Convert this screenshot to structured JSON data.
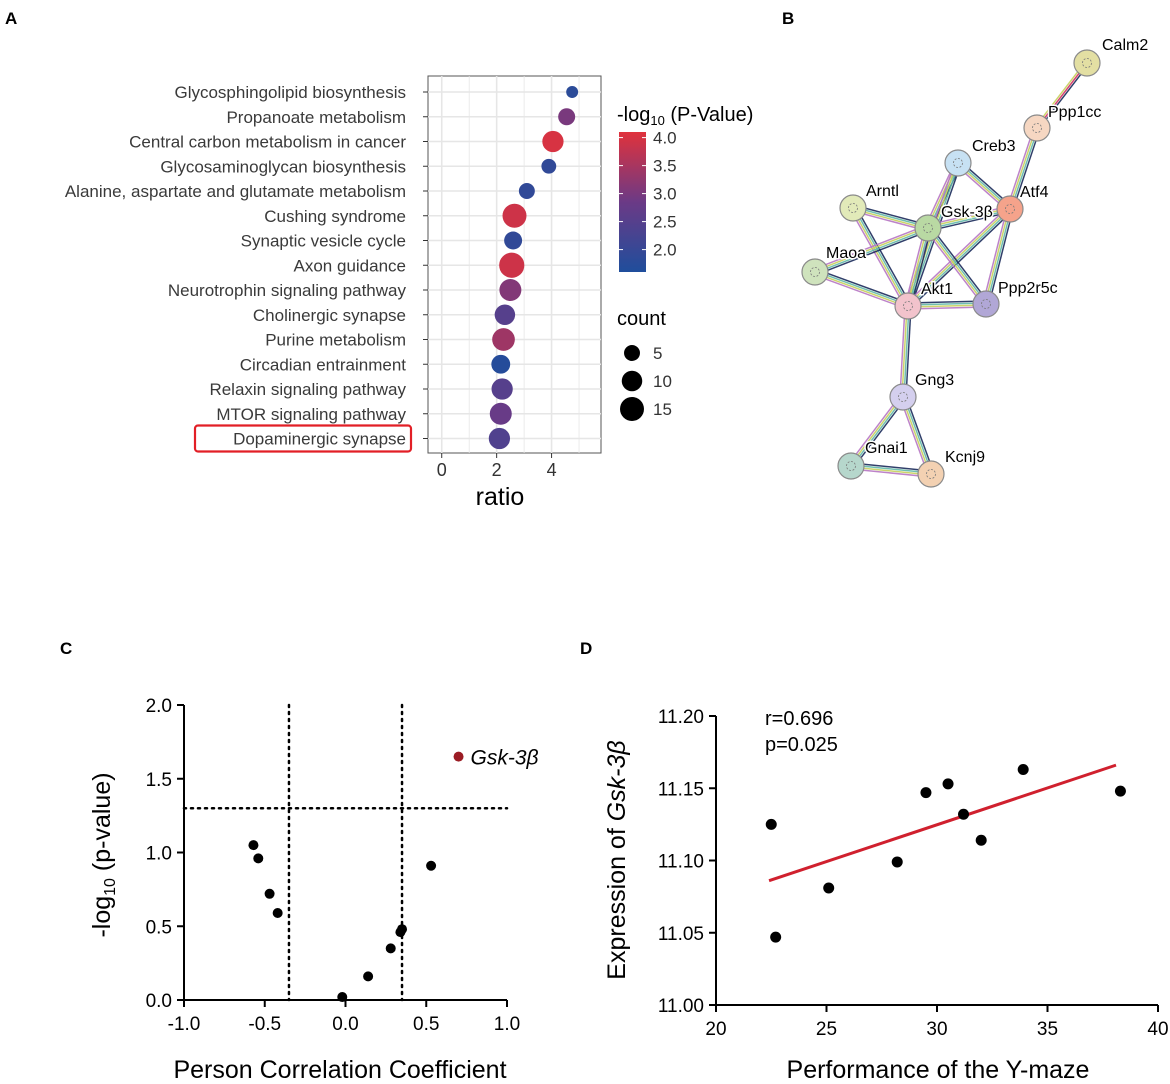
{
  "panels": {
    "A": {
      "label": "A"
    },
    "B": {
      "label": "B"
    },
    "C": {
      "label": "C"
    },
    "D": {
      "label": "D"
    }
  },
  "chart_data": [
    {
      "id": "A",
      "type": "scatter",
      "subtype": "bubble",
      "xlabel": "ratio",
      "xlim": [
        -0.5,
        5.8
      ],
      "xticks": [
        0,
        2,
        4
      ],
      "grid": true,
      "categories": [
        "Glycosphingolipid biosynthesis",
        "Propanoate metabolism",
        "Central carbon metabolism in cancer",
        "Glycosaminoglycan biosynthesis",
        "Alanine, aspartate and glutamate metabolism",
        "Cushing syndrome",
        "Synaptic vesicle cycle",
        "Axon guidance",
        "Neurotrophin signaling pathway",
        "Cholinergic synapse",
        "Purine metabolism",
        "Circadian entrainment",
        "Relaxin signaling pathway",
        "MTOR signaling pathway",
        "Dopaminergic synapse"
      ],
      "ratio": [
        4.75,
        4.55,
        4.05,
        3.9,
        3.1,
        2.65,
        2.6,
        2.55,
        2.5,
        2.3,
        2.25,
        2.15,
        2.2,
        2.15,
        2.1
      ],
      "count": [
        2,
        6,
        11,
        4,
        5,
        15,
        7,
        17,
        12,
        10,
        13,
        8,
        11,
        12,
        11
      ],
      "neg_log10_p": [
        1.8,
        3.0,
        4.0,
        1.9,
        1.9,
        3.9,
        1.9,
        3.9,
        3.1,
        2.5,
        3.4,
        1.7,
        2.5,
        2.8,
        2.4
      ],
      "highlighted": "Dopaminergic synapse",
      "color_legend": {
        "title_prefix": "-log",
        "title_sub": "10",
        "title_suffix": " (P-Value)",
        "ticks": [
          "4.0",
          "3.5",
          "3.0",
          "2.5",
          "2.0"
        ],
        "range": [
          1.6,
          4.1
        ],
        "low_color": "#1f4e9c",
        "mid_color": "#6b3a86",
        "high_color": "#e0323c"
      },
      "size_legend": {
        "title": "count",
        "values": [
          5,
          10,
          15
        ]
      }
    },
    {
      "id": "B",
      "type": "network",
      "nodes": [
        {
          "id": "Calm2",
          "color": "#e3dfa3"
        },
        {
          "id": "Ppp1cc",
          "color": "#f6d7c2"
        },
        {
          "id": "Creb3",
          "color": "#c7e1f3"
        },
        {
          "id": "Atf4",
          "color": "#f5a38b"
        },
        {
          "id": "Arntl",
          "color": "#e2eab9"
        },
        {
          "id": "Gsk-3β",
          "color": "#b9d9a3"
        },
        {
          "id": "Maoa",
          "color": "#cfe3bd"
        },
        {
          "id": "Akt1",
          "color": "#f2c3cc"
        },
        {
          "id": "Ppp2r5c",
          "color": "#b1a7d6"
        },
        {
          "id": "Gng3",
          "color": "#d4cfee"
        },
        {
          "id": "Gnai1",
          "color": "#b6d7cc"
        },
        {
          "id": "Kcnj9",
          "color": "#f3d1b2"
        }
      ],
      "edges": [
        [
          "Calm2",
          "Ppp1cc"
        ],
        [
          "Ppp1cc",
          "Atf4"
        ],
        [
          "Creb3",
          "Atf4"
        ],
        [
          "Creb3",
          "Gsk-3β"
        ],
        [
          "Creb3",
          "Akt1"
        ],
        [
          "Atf4",
          "Gsk-3β"
        ],
        [
          "Atf4",
          "Akt1"
        ],
        [
          "Atf4",
          "Ppp2r5c"
        ],
        [
          "Arntl",
          "Gsk-3β"
        ],
        [
          "Arntl",
          "Akt1"
        ],
        [
          "Gsk-3β",
          "Maoa"
        ],
        [
          "Gsk-3β",
          "Akt1"
        ],
        [
          "Gsk-3β",
          "Ppp2r5c"
        ],
        [
          "Maoa",
          "Akt1"
        ],
        [
          "Akt1",
          "Ppp2r5c"
        ],
        [
          "Akt1",
          "Gng3"
        ],
        [
          "Gng3",
          "Gnai1"
        ],
        [
          "Gng3",
          "Kcnj9"
        ],
        [
          "Gnai1",
          "Kcnj9"
        ]
      ]
    },
    {
      "id": "C",
      "type": "scatter",
      "xlabel": "Person Correlation Coefficient",
      "ylabel_prefix": "-log",
      "ylabel_sub": "10",
      "ylabel_suffix": " (p-value)",
      "xlim": [
        -1.0,
        1.0
      ],
      "ylim": [
        0.0,
        2.0
      ],
      "xticks": [
        "-1.0",
        "-0.5",
        "0.0",
        "0.5",
        "1.0"
      ],
      "yticks": [
        "0.0",
        "0.5",
        "1.0",
        "1.5",
        "2.0"
      ],
      "thresholds": {
        "x": [
          -0.35,
          0.35
        ],
        "y": 1.3
      },
      "x": [
        -0.57,
        -0.54,
        -0.47,
        -0.42,
        -0.02,
        0.14,
        0.28,
        0.34,
        0.35,
        0.53
      ],
      "y": [
        1.05,
        0.96,
        0.72,
        0.59,
        0.02,
        0.16,
        0.35,
        0.46,
        0.48,
        0.91
      ],
      "highlight": {
        "label": "Gsk-3β",
        "x": 0.7,
        "y": 1.65,
        "color": "#9b1c24"
      }
    },
    {
      "id": "D",
      "type": "scatter",
      "xlabel": "Performance of the Y-maze",
      "ylabel_prefix": "Expression of ",
      "ylabel_gene": "Gsk-3β",
      "xlim": [
        20,
        40
      ],
      "ylim": [
        11.0,
        11.2
      ],
      "xticks": [
        "20",
        "25",
        "30",
        "35",
        "40"
      ],
      "yticks": [
        "11.00",
        "11.05",
        "11.10",
        "11.15",
        "11.20"
      ],
      "x": [
        22.5,
        22.7,
        25.1,
        28.2,
        29.5,
        30.5,
        31.2,
        32.0,
        33.9,
        38.3
      ],
      "y": [
        11.125,
        11.047,
        11.081,
        11.099,
        11.147,
        11.153,
        11.132,
        11.114,
        11.163,
        11.148
      ],
      "fit": {
        "x": [
          22.4,
          38.1
        ],
        "y": [
          11.086,
          11.166
        ],
        "color": "#d0202e"
      },
      "annotations": [
        "r=0.696",
        "p=0.025"
      ]
    }
  ]
}
